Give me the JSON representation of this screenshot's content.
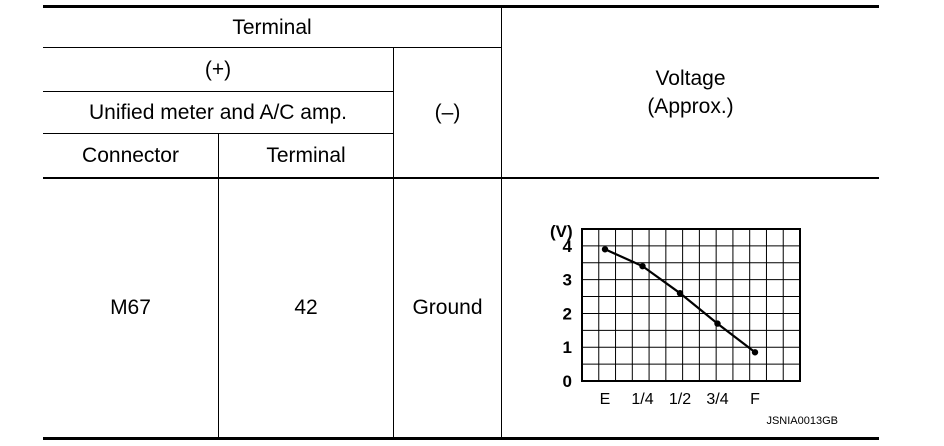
{
  "table": {
    "header": {
      "terminal": "Terminal",
      "plus": "(+)",
      "unit": "Unified meter and A/C amp.",
      "minus": "(–)",
      "connector": "Connector",
      "terminal_sub": "Terminal",
      "voltage_line1": "Voltage",
      "voltage_line2": "(Approx.)"
    },
    "row": {
      "connector": "M67",
      "terminal": "42",
      "ground": "Ground"
    }
  },
  "chart_data": {
    "type": "line",
    "x": [
      "E",
      "1/4",
      "1/2",
      "3/4",
      "F"
    ],
    "series": [
      {
        "values": [
          3.9,
          3.4,
          2.6,
          1.7,
          0.85
        ]
      }
    ],
    "ylabel": "(V)",
    "yticks": [
      "0",
      "1",
      "2",
      "3",
      "4"
    ],
    "ylim": [
      0,
      4.5
    ],
    "grid": true
  },
  "figure_code": "JSNIA0013GB"
}
